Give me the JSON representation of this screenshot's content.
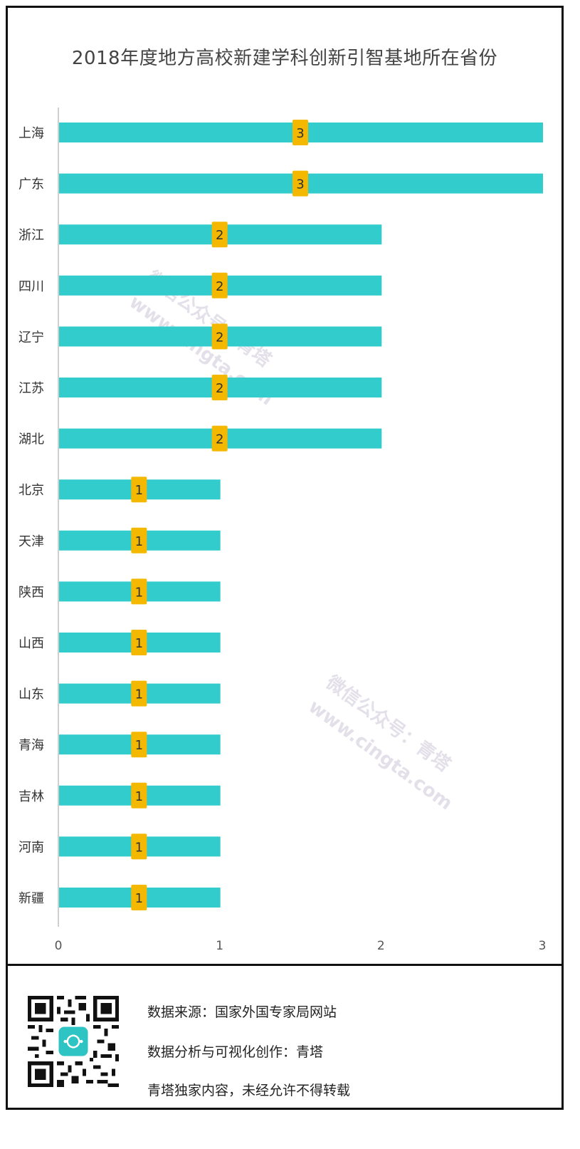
{
  "chart_data": {
    "type": "bar",
    "orientation": "horizontal",
    "title": "2018年度地方高校新建学科创新引智基地所在省份",
    "categories": [
      "上海",
      "广东",
      "浙江",
      "四川",
      "辽宁",
      "江苏",
      "湖北",
      "北京",
      "天津",
      "陕西",
      "山西",
      "山东",
      "青海",
      "吉林",
      "河南",
      "新疆"
    ],
    "values": [
      3,
      3,
      2,
      2,
      2,
      2,
      2,
      1,
      1,
      1,
      1,
      1,
      1,
      1,
      1,
      1
    ],
    "xlim": [
      0,
      3
    ],
    "x_ticks": [
      "0",
      "1",
      "2",
      "3"
    ],
    "bar_color": "#33cccc",
    "label_bg_color": "#f5b800",
    "grid": false,
    "legend": "none"
  },
  "watermark": {
    "line1": "微信公众号：青塔",
    "line2": "www.cingta.com"
  },
  "footer": {
    "source": "数据来源：国家外国专家局网站",
    "analysis": "数据分析与可视化创作：青塔",
    "copyright": "青塔独家内容，未经允许不得转载"
  }
}
